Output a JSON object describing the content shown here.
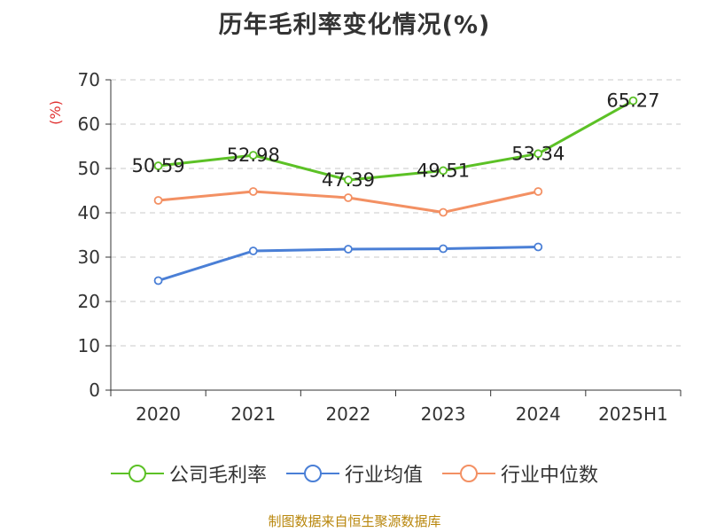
{
  "chart_data": {
    "type": "line",
    "title": "历年毛利率变化情况(%)",
    "ylabel": "(%)",
    "xlabel": "",
    "categories": [
      "2020",
      "2021",
      "2022",
      "2023",
      "2024",
      "2025H1"
    ],
    "ylim": [
      0,
      70
    ],
    "yticks": [
      0,
      10,
      20,
      30,
      40,
      50,
      60,
      70
    ],
    "grid": "horizontal dashed",
    "legend_position": "bottom",
    "series": [
      {
        "name": "公司毛利率",
        "color": "#5cc126",
        "values": [
          50.59,
          52.98,
          47.39,
          49.51,
          53.34,
          65.27
        ],
        "labels": [
          "50.59",
          "52.98",
          "47.39",
          "49.51",
          "53.34",
          "65.27"
        ]
      },
      {
        "name": "行业均值",
        "color": "#4a7fd6",
        "values": [
          24.7,
          31.4,
          31.8,
          31.9,
          32.3,
          null
        ]
      },
      {
        "name": "行业中位数",
        "color": "#f39063",
        "values": [
          42.8,
          44.8,
          43.4,
          40.1,
          44.8,
          null
        ]
      }
    ]
  },
  "source_text": "制图数据来自恒生聚源数据库"
}
